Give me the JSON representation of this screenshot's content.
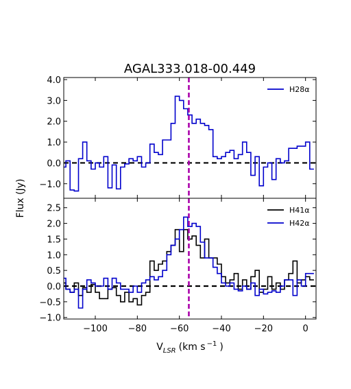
{
  "chart_data": {
    "type": "line",
    "title": "AGAL333.018-00.449",
    "ylabel": "Flux (Jy)",
    "xlabel": "V",
    "xlabel_sub": "LSR",
    "xlabel_units": "(km s",
    "xlabel_units_sup": "−1",
    "xlabel_units_end": ")",
    "xlim": [
      -115,
      5
    ],
    "xticks": [
      -100,
      -80,
      -60,
      -40,
      -20,
      0
    ],
    "xtick_labels": [
      "−100",
      "−80",
      "−60",
      "−40",
      "−20",
      "0"
    ],
    "vline_x": -55.5,
    "vline_color": "#aa00aa",
    "zero_line_color": "#000000",
    "panels": [
      {
        "ylim": [
          -1.7,
          4.1
        ],
        "yticks": [
          -1.0,
          0.0,
          1.0,
          2.0,
          3.0,
          4.0
        ],
        "ytick_labels": [
          "−1.0",
          "0.0",
          "1.0",
          "2.0",
          "3.0",
          "4.0"
        ],
        "legend_position": "top-right",
        "series": [
          {
            "name": "H28α",
            "color": "#0000cc",
            "x": [
              -115,
              -113,
              -111,
              -109,
              -107,
              -105,
              -103,
              -101,
              -99,
              -97,
              -95,
              -93,
              -91,
              -89,
              -87,
              -85,
              -83,
              -81,
              -79,
              -77,
              -75,
              -73,
              -71,
              -69,
              -67,
              -65,
              -63,
              -61,
              -59,
              -57,
              -55,
              -53,
              -51,
              -49,
              -47,
              -45,
              -43,
              -41,
              -39,
              -37,
              -35,
              -33,
              -31,
              -29,
              -27,
              -25,
              -23,
              -21,
              -19,
              -17,
              -15,
              -13,
              -11,
              -9,
              -7,
              -5,
              -3,
              -1,
              1,
              3
            ],
            "y": [
              -0.2,
              0.1,
              -1.3,
              -1.35,
              0.2,
              1.0,
              0.1,
              -0.3,
              0.0,
              -0.2,
              0.3,
              -1.2,
              -0.1,
              -1.25,
              -0.2,
              -0.05,
              0.2,
              0.1,
              0.3,
              -0.2,
              0.0,
              0.9,
              0.5,
              0.4,
              1.1,
              1.1,
              1.9,
              3.2,
              3.0,
              2.6,
              2.3,
              1.9,
              2.1,
              1.9,
              1.8,
              1.6,
              0.3,
              0.2,
              0.3,
              0.5,
              0.6,
              0.2,
              0.4,
              1.0,
              0.5,
              -0.6,
              0.3,
              -1.1,
              -0.2,
              0.0,
              -0.8,
              0.2,
              0.0,
              0.1,
              0.7,
              0.7,
              0.8,
              0.8,
              1.0,
              -0.3
            ]
          }
        ]
      },
      {
        "ylim": [
          -1.05,
          2.8
        ],
        "yticks": [
          -1.0,
          -0.5,
          0.0,
          0.5,
          1.0,
          1.5,
          2.0,
          2.5
        ],
        "ytick_labels": [
          "−1.0",
          "−0.5",
          "0.0",
          "0.5",
          "1.0",
          "1.5",
          "2.0",
          "2.5"
        ],
        "legend_position": "top-right",
        "series": [
          {
            "name": "H41α",
            "color": "#000000",
            "x": [
              -115,
              -113,
              -111,
              -109,
              -107,
              -105,
              -103,
              -101,
              -99,
              -97,
              -95,
              -93,
              -91,
              -89,
              -87,
              -85,
              -83,
              -81,
              -79,
              -77,
              -75,
              -73,
              -71,
              -69,
              -67,
              -65,
              -63,
              -61,
              -59,
              -57,
              -55,
              -53,
              -51,
              -49,
              -47,
              -45,
              -43,
              -41,
              -39,
              -37,
              -35,
              -33,
              -31,
              -29,
              -27,
              -25,
              -23,
              -21,
              -19,
              -17,
              -15,
              -13,
              -11,
              -9,
              -7,
              -5,
              -3,
              -1,
              1,
              3
            ],
            "y": [
              0.1,
              -0.1,
              -0.2,
              0.1,
              -0.3,
              -0.05,
              -0.2,
              0.05,
              -0.2,
              -0.4,
              -0.4,
              -0.1,
              -0.05,
              -0.3,
              -0.5,
              -0.2,
              -0.5,
              -0.4,
              -0.6,
              -0.3,
              -0.2,
              0.8,
              0.5,
              0.7,
              0.8,
              1.1,
              1.3,
              1.8,
              1.1,
              1.8,
              1.5,
              1.6,
              1.3,
              0.9,
              1.5,
              0.9,
              0.9,
              0.7,
              0.3,
              0.1,
              0.2,
              0.4,
              -0.1,
              0.2,
              -0.1,
              0.3,
              0.5,
              -0.2,
              -0.1,
              0.3,
              -0.1,
              0.1,
              -0.1,
              0.2,
              0.4,
              0.8,
              0.1,
              0.2,
              0.3,
              0.2
            ]
          },
          {
            "name": "H42α",
            "color": "#0000cc",
            "x": [
              -115,
              -113,
              -111,
              -109,
              -107,
              -105,
              -103,
              -101,
              -99,
              -97,
              -95,
              -93,
              -91,
              -89,
              -87,
              -85,
              -83,
              -81,
              -79,
              -77,
              -75,
              -73,
              -71,
              -69,
              -67,
              -65,
              -63,
              -61,
              -59,
              -57,
              -55,
              -53,
              -51,
              -49,
              -47,
              -45,
              -43,
              -41,
              -39,
              -37,
              -35,
              -33,
              -31,
              -29,
              -27,
              -25,
              -23,
              -21,
              -19,
              -17,
              -15,
              -13,
              -11,
              -9,
              -7,
              -5,
              -3,
              -1,
              1,
              3
            ],
            "y": [
              0.25,
              -0.1,
              -0.2,
              -0.1,
              -0.7,
              -0.1,
              0.2,
              0.1,
              0.0,
              0.0,
              0.25,
              -0.1,
              0.25,
              0.1,
              -0.1,
              -0.1,
              -0.2,
              0.0,
              -0.2,
              0.1,
              0.2,
              0.3,
              0.2,
              0.3,
              0.5,
              1.0,
              1.3,
              1.5,
              1.8,
              2.2,
              1.9,
              2.0,
              1.9,
              1.4,
              0.9,
              0.9,
              0.6,
              0.4,
              0.1,
              0.0,
              0.1,
              -0.1,
              -0.15,
              0.0,
              -0.1,
              0.1,
              -0.3,
              -0.1,
              -0.25,
              -0.2,
              -0.15,
              -0.2,
              0.0,
              0.2,
              0.2,
              -0.3,
              0.2,
              0.0,
              0.4,
              0.4
            ]
          }
        ]
      }
    ]
  }
}
